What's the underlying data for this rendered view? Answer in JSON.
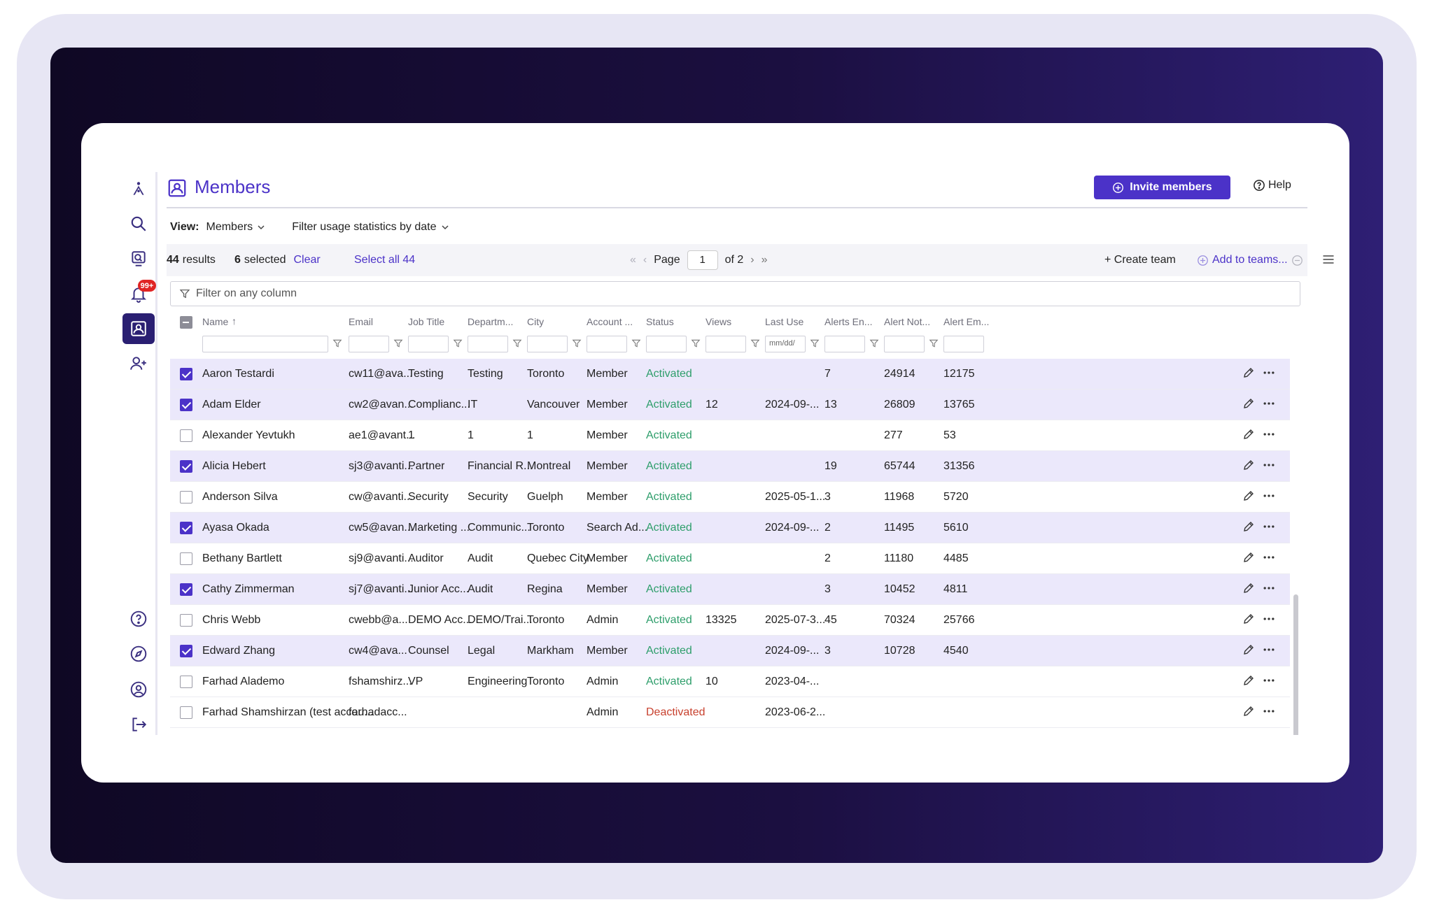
{
  "header": {
    "title": "Members",
    "invite_label": "Invite members",
    "help_label": "Help"
  },
  "view": {
    "label": "View:",
    "value": "Members",
    "filter_label": "Filter usage statistics by date"
  },
  "toolbar": {
    "results_count": "44",
    "results_label": "results",
    "selected_count": "6",
    "selected_label": "selected",
    "clear_label": "Clear",
    "select_all_label": "Select all 44",
    "page_label": "Page",
    "page_value": "1",
    "page_of": "of 2",
    "create_team_label": "+ Create team",
    "add_to_teams_label": "Add to teams..."
  },
  "filter": {
    "placeholder": "Filter on any column"
  },
  "badge": {
    "text": "99+"
  },
  "columns": [
    "Name",
    "Email",
    "Job Title",
    "Departm...",
    "City",
    "Account ...",
    "Status",
    "Views",
    "Last Use",
    "Alerts En...",
    "Alert Not...",
    "Alert Em..."
  ],
  "date_placeholder": "mm/dd/",
  "rows": [
    {
      "selected": true,
      "name": "Aaron Testardi",
      "email": "cw11@ava...",
      "job": "Testing",
      "dept": "Testing",
      "city": "Toronto",
      "account": "Member",
      "status": "Activated",
      "views": "",
      "last": "",
      "alerts_en": "7",
      "alert_not": "24914",
      "alert_em": "12175"
    },
    {
      "selected": true,
      "name": "Adam Elder",
      "email": "cw2@avan...",
      "job": "Complianc...",
      "dept": "IT",
      "city": "Vancouver",
      "account": "Member",
      "status": "Activated",
      "views": "12",
      "last": "2024-09-...",
      "alerts_en": "13",
      "alert_not": "26809",
      "alert_em": "13765"
    },
    {
      "selected": false,
      "name": "Alexander Yevtukh",
      "email": "ae1@avant...",
      "job": "1",
      "dept": "1",
      "city": "1",
      "account": "Member",
      "status": "Activated",
      "views": "",
      "last": "",
      "alerts_en": "",
      "alert_not": "277",
      "alert_em": "53"
    },
    {
      "selected": true,
      "name": "Alicia Hebert",
      "email": "sj3@avanti...",
      "job": "Partner",
      "dept": "Financial R...",
      "city": "Montreal",
      "account": "Member",
      "status": "Activated",
      "views": "",
      "last": "",
      "alerts_en": "19",
      "alert_not": "65744",
      "alert_em": "31356"
    },
    {
      "selected": false,
      "name": "Anderson Silva",
      "email": "cw@avanti...",
      "job": "Security",
      "dept": "Security",
      "city": "Guelph",
      "account": "Member",
      "status": "Activated",
      "views": "",
      "last": "2025-05-1...",
      "alerts_en": "3",
      "alert_not": "11968",
      "alert_em": "5720"
    },
    {
      "selected": true,
      "name": "Ayasa Okada",
      "email": "cw5@avan...",
      "job": "Marketing ...",
      "dept": "Communic...",
      "city": "Toronto",
      "account": "Search Ad...",
      "status": "Activated",
      "views": "",
      "last": "2024-09-...",
      "alerts_en": "2",
      "alert_not": "11495",
      "alert_em": "5610"
    },
    {
      "selected": false,
      "name": "Bethany Bartlett",
      "email": "sj9@avanti...",
      "job": "Auditor",
      "dept": "Audit",
      "city": "Quebec City",
      "account": "Member",
      "status": "Activated",
      "views": "",
      "last": "",
      "alerts_en": "2",
      "alert_not": "11180",
      "alert_em": "4485"
    },
    {
      "selected": true,
      "name": "Cathy Zimmerman",
      "email": "sj7@avanti...",
      "job": "Junior Acc...",
      "dept": "Audit",
      "city": "Regina",
      "account": "Member",
      "status": "Activated",
      "views": "",
      "last": "",
      "alerts_en": "3",
      "alert_not": "10452",
      "alert_em": "4811"
    },
    {
      "selected": false,
      "name": "Chris Webb",
      "email": "cwebb@a...",
      "job": "DEMO Acc...",
      "dept": "DEMO/Trai...",
      "city": "Toronto",
      "account": "Admin",
      "status": "Activated",
      "views": "13325",
      "last": "2025-07-3...",
      "alerts_en": "45",
      "alert_not": "70324",
      "alert_em": "25766"
    },
    {
      "selected": true,
      "name": "Edward Zhang",
      "email": "cw4@ava...",
      "job": "Counsel",
      "dept": "Legal",
      "city": "Markham",
      "account": "Member",
      "status": "Activated",
      "views": "",
      "last": "2024-09-...",
      "alerts_en": "3",
      "alert_not": "10728",
      "alert_em": "4540"
    },
    {
      "selected": false,
      "name": "Farhad Alademo",
      "email": "fshamshirz...",
      "job": "VP",
      "dept": "Engineering",
      "city": "Toronto",
      "account": "Admin",
      "status": "Activated",
      "views": "10",
      "last": "2023-04-...",
      "alerts_en": "",
      "alert_not": "",
      "alert_em": ""
    },
    {
      "selected": false,
      "name": "Farhad Shamshirzan (test accou...",
      "email": "farhadacc...",
      "job": "",
      "dept": "",
      "city": "",
      "account": "Admin",
      "status": "Deactivated",
      "views": "",
      "last": "2023-06-2...",
      "alerts_en": "",
      "alert_not": "",
      "alert_em": ""
    }
  ],
  "colors": {
    "accent": "#4b32c8",
    "activated": "#2e9e6b",
    "deactivated": "#c8412e",
    "selected_row": "#ebe8fb"
  }
}
